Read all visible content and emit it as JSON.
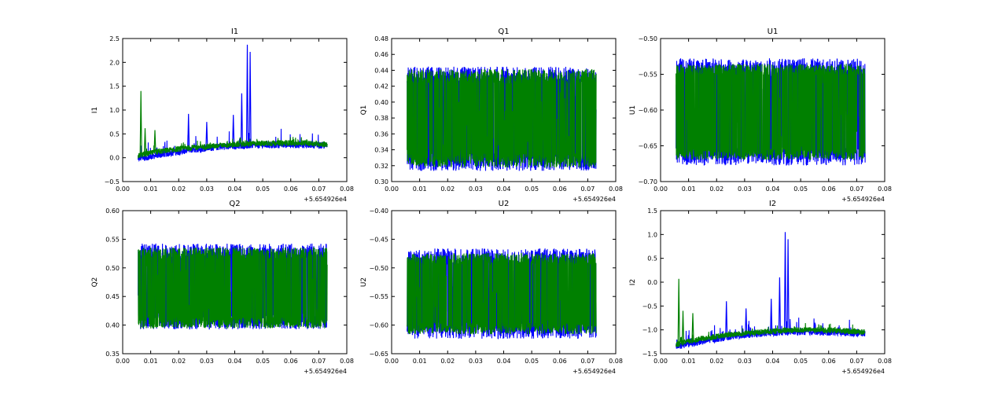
{
  "chart_data": [
    {
      "type": "line",
      "title": "I1",
      "ylabel": "I1",
      "xlim": [
        0.0,
        0.08
      ],
      "ylim": [
        -0.5,
        2.5
      ],
      "xticks": [
        "0.00",
        "0.01",
        "0.02",
        "0.03",
        "0.04",
        "0.05",
        "0.06",
        "0.07",
        "0.08"
      ],
      "yticks": [
        "−0.5",
        "0.0",
        "0.5",
        "1.0",
        "1.5",
        "2.0",
        "2.5"
      ],
      "x_offset_label": "+5.654926e4",
      "series": [
        {
          "color": "#0000ff",
          "x_range": [
            0.0055,
            0.073
          ],
          "trend": [
            [
              0.0055,
              -0.02
            ],
            [
              0.015,
              0.08
            ],
            [
              0.025,
              0.17
            ],
            [
              0.035,
              0.23
            ],
            [
              0.045,
              0.26
            ],
            [
              0.055,
              0.27
            ],
            [
              0.065,
              0.27
            ],
            [
              0.073,
              0.25
            ]
          ],
          "band": 0.14,
          "spread": 0.35,
          "spikes": [
            [
              0.0445,
              2.37
            ],
            [
              0.0455,
              2.22
            ],
            [
              0.0425,
              1.35
            ],
            [
              0.0395,
              0.9
            ],
            [
              0.0235,
              0.92
            ],
            [
              0.03,
              0.75
            ]
          ]
        },
        {
          "color": "#008000",
          "x_range": [
            0.0055,
            0.073
          ],
          "trend": [
            [
              0.0055,
              0.05
            ],
            [
              0.015,
              0.15
            ],
            [
              0.025,
              0.21
            ],
            [
              0.035,
              0.26
            ],
            [
              0.045,
              0.29
            ],
            [
              0.055,
              0.31
            ],
            [
              0.065,
              0.31
            ],
            [
              0.073,
              0.28
            ]
          ],
          "band": 0.12,
          "spread": 0.15,
          "spikes": [
            [
              0.0065,
              1.4
            ],
            [
              0.008,
              0.62
            ],
            [
              0.0115,
              0.58
            ]
          ]
        }
      ]
    },
    {
      "type": "line",
      "title": "Q1",
      "ylabel": "Q1",
      "xlim": [
        0.0,
        0.08
      ],
      "ylim": [
        0.3,
        0.48
      ],
      "xticks": [
        "0.00",
        "0.01",
        "0.02",
        "0.03",
        "0.04",
        "0.05",
        "0.06",
        "0.07",
        "0.08"
      ],
      "yticks": [
        "0.30",
        "0.32",
        "0.34",
        "0.36",
        "0.38",
        "0.40",
        "0.42",
        "0.44",
        "0.46",
        "0.48"
      ],
      "x_offset_label": "+5.654926e4",
      "series": [
        {
          "color": "#0000ff",
          "x_range": [
            0.0055,
            0.073
          ],
          "lo": 0.32,
          "hi": 0.438,
          "spread": 0.022
        },
        {
          "color": "#008000",
          "x_range": [
            0.0055,
            0.073
          ],
          "lo": 0.323,
          "hi": 0.436,
          "spread": 0.018
        }
      ]
    },
    {
      "type": "line",
      "title": "U1",
      "ylabel": "U1",
      "xlim": [
        0.0,
        0.08
      ],
      "ylim": [
        -0.7,
        -0.5
      ],
      "xticks": [
        "0.00",
        "0.01",
        "0.02",
        "0.03",
        "0.04",
        "0.05",
        "0.06",
        "0.07",
        "0.08"
      ],
      "yticks": [
        "−0.70",
        "−0.65",
        "−0.60",
        "−0.55",
        "−0.50"
      ],
      "x_offset_label": "+5.654926e4",
      "series": [
        {
          "color": "#0000ff",
          "x_range": [
            0.0055,
            0.073
          ],
          "lo": -0.67,
          "hi": -0.535,
          "spread": 0.025
        },
        {
          "color": "#008000",
          "x_range": [
            0.0055,
            0.073
          ],
          "lo": -0.665,
          "hi": -0.54,
          "spread": 0.015
        }
      ]
    },
    {
      "type": "line",
      "title": "Q2",
      "ylabel": "Q2",
      "xlim": [
        0.0,
        0.08
      ],
      "ylim": [
        0.35,
        0.6
      ],
      "xticks": [
        "0.00",
        "0.01",
        "0.02",
        "0.03",
        "0.04",
        "0.05",
        "0.06",
        "0.07",
        "0.08"
      ],
      "yticks": [
        "0.35",
        "0.40",
        "0.45",
        "0.50",
        "0.55",
        "0.60"
      ],
      "x_offset_label": "+5.654926e4",
      "series": [
        {
          "color": "#0000ff",
          "x_range": [
            0.0055,
            0.073
          ],
          "lo": 0.4,
          "hi": 0.535,
          "spread": 0.025
        },
        {
          "color": "#008000",
          "x_range": [
            0.0055,
            0.073
          ],
          "lo": 0.4,
          "hi": 0.53,
          "spread": 0.02
        }
      ]
    },
    {
      "type": "line",
      "title": "U2",
      "ylabel": "U2",
      "xlim": [
        0.0,
        0.08
      ],
      "ylim": [
        -0.65,
        -0.4
      ],
      "xticks": [
        "0.00",
        "0.01",
        "0.02",
        "0.03",
        "0.04",
        "0.05",
        "0.06",
        "0.07",
        "0.08"
      ],
      "yticks": [
        "−0.65",
        "−0.60",
        "−0.55",
        "−0.50",
        "−0.45",
        "−0.40"
      ],
      "x_offset_label": "+5.654926e4",
      "series": [
        {
          "color": "#0000ff",
          "x_range": [
            0.0055,
            0.073
          ],
          "lo": -0.615,
          "hi": -0.475,
          "spread": 0.03
        },
        {
          "color": "#008000",
          "x_range": [
            0.0055,
            0.073
          ],
          "lo": -0.61,
          "hi": -0.48,
          "spread": 0.02
        }
      ]
    },
    {
      "type": "line",
      "title": "I2",
      "ylabel": "I2",
      "xlim": [
        0.0,
        0.08
      ],
      "ylim": [
        -1.5,
        1.5
      ],
      "xticks": [
        "0.00",
        "0.01",
        "0.02",
        "0.03",
        "0.04",
        "0.05",
        "0.06",
        "0.07",
        "0.08"
      ],
      "yticks": [
        "−1.5",
        "−1.0",
        "−0.5",
        "0.0",
        "0.5",
        "1.0",
        "1.5"
      ],
      "x_offset_label": "+5.654926e4",
      "series": [
        {
          "color": "#0000ff",
          "x_range": [
            0.0055,
            0.073
          ],
          "trend": [
            [
              0.0055,
              -1.35
            ],
            [
              0.015,
              -1.24
            ],
            [
              0.025,
              -1.14
            ],
            [
              0.035,
              -1.08
            ],
            [
              0.045,
              -1.04
            ],
            [
              0.055,
              -1.04
            ],
            [
              0.065,
              -1.06
            ],
            [
              0.073,
              -1.08
            ]
          ],
          "band": 0.14,
          "spread": 0.3,
          "spikes": [
            [
              0.0445,
              1.05
            ],
            [
              0.0455,
              0.9
            ],
            [
              0.0425,
              0.1
            ],
            [
              0.0395,
              -0.35
            ],
            [
              0.0235,
              -0.4
            ],
            [
              0.0305,
              -0.55
            ]
          ]
        },
        {
          "color": "#008000",
          "x_range": [
            0.0055,
            0.073
          ],
          "trend": [
            [
              0.0055,
              -1.3
            ],
            [
              0.015,
              -1.18
            ],
            [
              0.025,
              -1.1
            ],
            [
              0.035,
              -1.05
            ],
            [
              0.045,
              -1.01
            ],
            [
              0.055,
              -1.0
            ],
            [
              0.065,
              -1.02
            ],
            [
              0.073,
              -1.05
            ]
          ],
          "band": 0.12,
          "spread": 0.15,
          "spikes": [
            [
              0.0065,
              0.07
            ],
            [
              0.008,
              -0.6
            ],
            [
              0.0115,
              -0.65
            ]
          ]
        }
      ]
    }
  ]
}
